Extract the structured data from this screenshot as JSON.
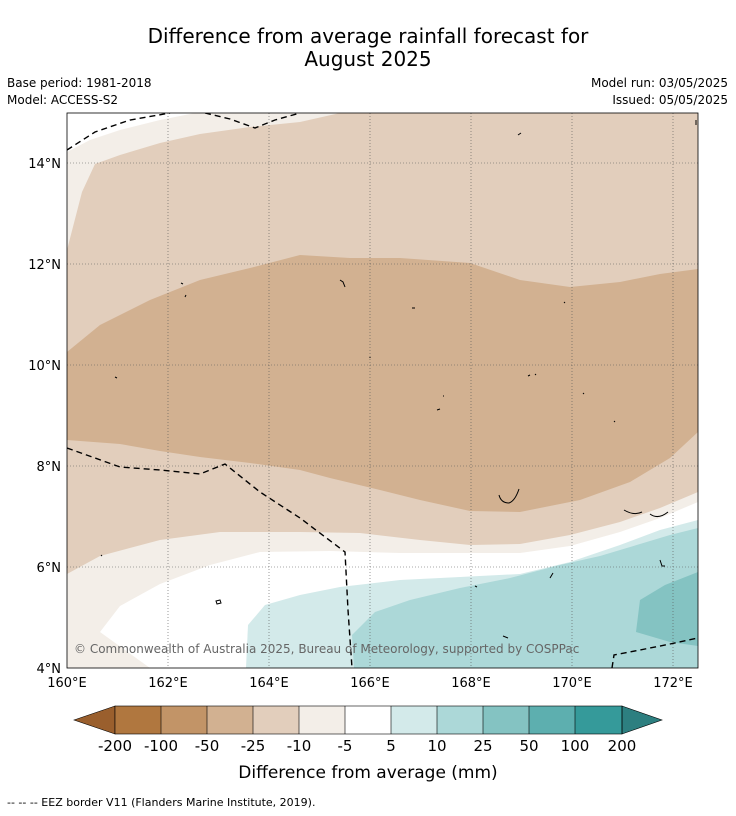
{
  "title_line1": "Difference from average rainfall forecast for",
  "title_line2": "August 2025",
  "base_period": "Base period: 1981-2018",
  "model": "Model: ACCESS-S2",
  "model_run": "Model run: 03/05/2025",
  "issued": "Issued: 05/05/2025",
  "copyright": "© Commonwealth of Australia 2025, Bureau of Meteorology, supported by COSPPac",
  "map": {
    "lat_labels": [
      "4°N",
      "6°N",
      "8°N",
      "10°N",
      "12°N",
      "14°N"
    ],
    "lon_labels": [
      "160°E",
      "162°E",
      "164°E",
      "166°E",
      "168°E",
      "170°E",
      "172°E"
    ]
  },
  "colorbar": {
    "title": "Difference from average (mm)",
    "labels": [
      "-200",
      "-100",
      "-50",
      "-25",
      "-10",
      "-5",
      "5",
      "10",
      "25",
      "50",
      "100",
      "200"
    ],
    "colors": {
      "lt_-200": "#9a5f2d",
      "-200_-100": "#b0773f",
      "-100_-50": "#c29467",
      "-50_-25": "#d2b191",
      "-25_-10": "#e2cebc",
      "-10_-5": "#f3eee8",
      "-5_5": "#ffffff",
      "5_10": "#d3eaea",
      "10_25": "#acd8d8",
      "25_50": "#84c3c2",
      "50_100": "#5dafaf",
      "100_200": "#359a9a",
      "gt_200": "#2d7f80"
    }
  },
  "footnote": "--  --  -- EEZ border V11 (Flanders Marine Institute, 2019)."
}
